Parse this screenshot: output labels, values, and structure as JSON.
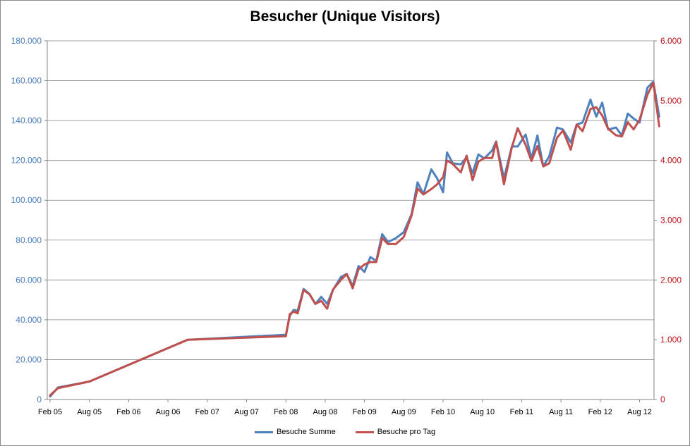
{
  "chart_data": {
    "type": "line",
    "title": "Besucher (Unique Visitors)",
    "x_ticks": [
      "Feb 05",
      "Aug 05",
      "Feb 06",
      "Aug 06",
      "Feb 07",
      "Aug 07",
      "Feb 08",
      "Aug 08",
      "Feb 09",
      "Aug 09",
      "Feb 10",
      "Aug 10",
      "Feb 11",
      "Aug 11",
      "Feb 12",
      "Aug 12"
    ],
    "y_left": {
      "ticks": [
        "0",
        "20.000",
        "40.000",
        "60.000",
        "80.000",
        "100.000",
        "120.000",
        "140.000",
        "160.000",
        "180.000"
      ],
      "ylim": [
        0,
        180000
      ],
      "color": "#4a7ebb"
    },
    "y_right": {
      "ticks": [
        "0",
        "1.000",
        "2.000",
        "3.000",
        "4.000",
        "5.000",
        "6.000"
      ],
      "ylim": [
        0,
        6000
      ],
      "color": "#c0161c"
    },
    "grid": "horizontal",
    "legend": "bottom",
    "series": [
      {
        "name": "Besuche Summe",
        "axis": "left",
        "color": "#4f81bd",
        "points": [
          [
            0,
            1500
          ],
          [
            0.2,
            6000
          ],
          [
            1,
            9000
          ],
          [
            3.5,
            30000
          ],
          [
            6,
            32500
          ],
          [
            6.1,
            42000
          ],
          [
            6.2,
            45000
          ],
          [
            6.3,
            44500
          ],
          [
            6.45,
            55500
          ],
          [
            6.6,
            53000
          ],
          [
            6.75,
            48000
          ],
          [
            6.9,
            51500
          ],
          [
            7.05,
            48000
          ],
          [
            7.2,
            55000
          ],
          [
            7.4,
            61500
          ],
          [
            7.55,
            63000
          ],
          [
            7.7,
            57000
          ],
          [
            7.85,
            67000
          ],
          [
            8,
            64000
          ],
          [
            8.15,
            71500
          ],
          [
            8.3,
            69500
          ],
          [
            8.45,
            83000
          ],
          [
            8.6,
            79000
          ],
          [
            8.8,
            81000
          ],
          [
            9,
            84000
          ],
          [
            9.2,
            93000
          ],
          [
            9.35,
            109000
          ],
          [
            9.5,
            103000
          ],
          [
            9.7,
            115500
          ],
          [
            9.85,
            111000
          ],
          [
            10,
            104000
          ],
          [
            10.1,
            124000
          ],
          [
            10.25,
            118500
          ],
          [
            10.45,
            118000
          ],
          [
            10.6,
            121500
          ],
          [
            10.75,
            113500
          ],
          [
            10.9,
            123000
          ],
          [
            11.05,
            121000
          ],
          [
            11.25,
            125000
          ],
          [
            11.35,
            129500
          ],
          [
            11.55,
            111000
          ],
          [
            11.75,
            127000
          ],
          [
            11.9,
            127000
          ],
          [
            12.1,
            133000
          ],
          [
            12.25,
            121000
          ],
          [
            12.4,
            132500
          ],
          [
            12.55,
            117000
          ],
          [
            12.7,
            122000
          ],
          [
            12.9,
            136500
          ],
          [
            13.05,
            135500
          ],
          [
            13.25,
            129000
          ],
          [
            13.4,
            138000
          ],
          [
            13.55,
            139000
          ],
          [
            13.75,
            150500
          ],
          [
            13.9,
            142000
          ],
          [
            14.05,
            149000
          ],
          [
            14.2,
            135500
          ],
          [
            14.4,
            136500
          ],
          [
            14.55,
            132500
          ],
          [
            14.7,
            143500
          ],
          [
            14.85,
            141000
          ],
          [
            15,
            139000
          ],
          [
            15.2,
            156500
          ],
          [
            15.35,
            159500
          ],
          [
            15.5,
            142000
          ]
        ]
      },
      {
        "name": "Besuche pro Tag",
        "axis": "right",
        "color": "#c0504d",
        "points": [
          [
            0,
            70
          ],
          [
            0.2,
            190
          ],
          [
            1,
            300
          ],
          [
            3.5,
            1000
          ],
          [
            6,
            1060
          ],
          [
            6.1,
            1430
          ],
          [
            6.2,
            1470
          ],
          [
            6.3,
            1440
          ],
          [
            6.45,
            1830
          ],
          [
            6.6,
            1760
          ],
          [
            6.75,
            1600
          ],
          [
            6.9,
            1650
          ],
          [
            7.05,
            1520
          ],
          [
            7.2,
            1840
          ],
          [
            7.4,
            2000
          ],
          [
            7.55,
            2100
          ],
          [
            7.7,
            1860
          ],
          [
            7.85,
            2180
          ],
          [
            8,
            2260
          ],
          [
            8.15,
            2300
          ],
          [
            8.3,
            2300
          ],
          [
            8.45,
            2700
          ],
          [
            8.6,
            2600
          ],
          [
            8.8,
            2600
          ],
          [
            9,
            2720
          ],
          [
            9.2,
            3080
          ],
          [
            9.35,
            3530
          ],
          [
            9.5,
            3430
          ],
          [
            9.7,
            3520
          ],
          [
            9.85,
            3600
          ],
          [
            10,
            3720
          ],
          [
            10.1,
            4000
          ],
          [
            10.25,
            3940
          ],
          [
            10.45,
            3800
          ],
          [
            10.6,
            4080
          ],
          [
            10.75,
            3670
          ],
          [
            10.9,
            3980
          ],
          [
            11.05,
            4040
          ],
          [
            11.25,
            4040
          ],
          [
            11.35,
            4310
          ],
          [
            11.55,
            3600
          ],
          [
            11.75,
            4220
          ],
          [
            11.9,
            4540
          ],
          [
            12.1,
            4260
          ],
          [
            12.25,
            3990
          ],
          [
            12.4,
            4240
          ],
          [
            12.55,
            3900
          ],
          [
            12.7,
            3950
          ],
          [
            12.9,
            4380
          ],
          [
            13.05,
            4500
          ],
          [
            13.25,
            4180
          ],
          [
            13.4,
            4600
          ],
          [
            13.55,
            4490
          ],
          [
            13.75,
            4860
          ],
          [
            13.9,
            4890
          ],
          [
            14.05,
            4750
          ],
          [
            14.2,
            4530
          ],
          [
            14.4,
            4420
          ],
          [
            14.55,
            4400
          ],
          [
            14.7,
            4640
          ],
          [
            14.85,
            4520
          ],
          [
            15,
            4680
          ],
          [
            15.2,
            5100
          ],
          [
            15.35,
            5300
          ],
          [
            15.5,
            4570
          ]
        ]
      }
    ]
  }
}
